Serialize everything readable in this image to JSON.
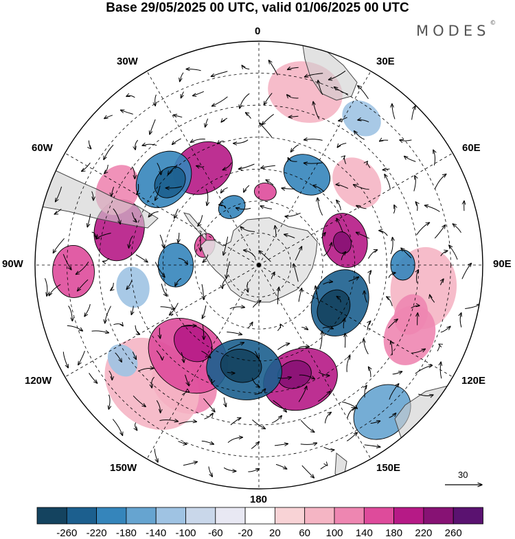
{
  "title": "Base 29/05/2025 00 UTC, valid 01/06/2025 00 UTC",
  "brand": {
    "name": "MODES",
    "mark": "©"
  },
  "longitude_labels": {
    "lon_0": "0",
    "lon_30e": "30E",
    "lon_60e": "60E",
    "lon_90e": "90E",
    "lon_120e": "120E",
    "lon_150e": "150E",
    "lon_180": "180",
    "lon_150w": "150W",
    "lon_120w": "120W",
    "lon_90w": "90W",
    "lon_60w": "60W",
    "lon_30w": "30W"
  },
  "reference_vector": {
    "value": "30"
  },
  "colorbar": {
    "labels": [
      "-260",
      "-220",
      "-180",
      "-140",
      "-100",
      "-60",
      "-20",
      "20",
      "60",
      "100",
      "140",
      "180",
      "220",
      "260"
    ],
    "colors": [
      "#14435f",
      "#1c5f8e",
      "#3585bb",
      "#66a4d0",
      "#9fc3e3",
      "#c9d7ea",
      "#e8e8f3",
      "#ffffff",
      "#f8d3d6",
      "#f5b5c4",
      "#ee86b1",
      "#de4b9b",
      "#b61a86",
      "#871274",
      "#5a1270"
    ]
  },
  "colors": {
    "land": "#e2e2e2",
    "text": "#000000"
  },
  "anomaly_features": [
    {
      "id": "a1",
      "sign": "positive",
      "level": 3,
      "lon": 98,
      "lat": -38,
      "r": 60
    },
    {
      "id": "a2",
      "sign": "positive",
      "level": 4,
      "lon": 108,
      "lat": -40,
      "r": 30
    },
    {
      "id": "a3",
      "sign": "positive",
      "level": 2,
      "lon": 15,
      "lat": -34,
      "r": 55
    },
    {
      "id": "a4",
      "sign": "positive",
      "level": 4,
      "lon": -148,
      "lat": -46,
      "r": 50
    },
    {
      "id": "a5",
      "sign": "positive",
      "level": 2,
      "lon": -138,
      "lat": -40,
      "r": 75
    },
    {
      "id": "a6",
      "sign": "positive",
      "level": 8,
      "lon": 160,
      "lat": -52,
      "r": 55
    },
    {
      "id": "a7",
      "sign": "positive",
      "level": 10,
      "lon": 162,
      "lat": -54,
      "r": 25
    },
    {
      "id": "a8",
      "sign": "positive",
      "level": 9,
      "lon": 74,
      "lat": -62,
      "r": 40
    },
    {
      "id": "a9",
      "sign": "positive",
      "level": 11,
      "lon": 75,
      "lat": -63,
      "r": 16
    },
    {
      "id": "a10",
      "sign": "positive",
      "level": 7,
      "lon": -142,
      "lat": -54,
      "r": 62
    },
    {
      "id": "a11",
      "sign": "positive",
      "level": 9,
      "lon": -140,
      "lat": -58,
      "r": 30
    },
    {
      "id": "a12",
      "sign": "positive",
      "level": 8,
      "lon": -30,
      "lat": -55,
      "r": 45
    },
    {
      "id": "a13",
      "sign": "positive",
      "level": 8,
      "lon": -76,
      "lat": -45,
      "r": 45
    },
    {
      "id": "a14",
      "sign": "positive",
      "level": 5,
      "lon": -62,
      "lat": -40,
      "r": 38
    },
    {
      "id": "a15",
      "sign": "positive",
      "level": 5,
      "lon": 115,
      "lat": -38,
      "r": 45
    },
    {
      "id": "a16",
      "sign": "positive",
      "level": 3,
      "lon": 50,
      "lat": -50,
      "r": 40
    },
    {
      "id": "a17",
      "sign": "positive",
      "level": 7,
      "lon": -92,
      "lat": -32,
      "r": 38
    },
    {
      "id": "a18",
      "sign": "positive",
      "level": 7,
      "lon": -70,
      "lat": -72,
      "r": 18
    },
    {
      "id": "a19",
      "sign": "positive",
      "level": 7,
      "lon": 5,
      "lat": -67,
      "r": 16
    },
    {
      "id": "n1",
      "sign": "negative",
      "level": 4,
      "lon": -125,
      "lat": -38,
      "r": 25
    },
    {
      "id": "n2",
      "sign": "negative",
      "level": 5,
      "lon": -100,
      "lat": -50,
      "r": 30
    },
    {
      "id": "n3",
      "sign": "negative",
      "level": 9,
      "lon": -48,
      "lat": -50,
      "r": 45
    },
    {
      "id": "n4",
      "sign": "negative",
      "level": 10,
      "lon": -47,
      "lat": -52,
      "r": 25
    },
    {
      "id": "n5",
      "sign": "negative",
      "level": 8,
      "lon": 28,
      "lat": -58,
      "r": 35
    },
    {
      "id": "n6",
      "sign": "negative",
      "level": 10,
      "lon": 115,
      "lat": -62,
      "r": 50
    },
    {
      "id": "n7",
      "sign": "negative",
      "level": 12,
      "lon": 120,
      "lat": -63,
      "r": 28
    },
    {
      "id": "n8",
      "sign": "negative",
      "level": 10,
      "lon": -172,
      "lat": -57,
      "r": 55
    },
    {
      "id": "n9",
      "sign": "negative",
      "level": 13,
      "lon": -170,
      "lat": -58,
      "r": 30
    },
    {
      "id": "n10",
      "sign": "negative",
      "level": 8,
      "lon": 90,
      "lat": -45,
      "r": 22
    },
    {
      "id": "n11",
      "sign": "negative",
      "level": 8,
      "lon": -90,
      "lat": -64,
      "r": 32
    },
    {
      "id": "n12",
      "sign": "negative",
      "level": 8,
      "lon": -25,
      "lat": -70,
      "r": 20
    },
    {
      "id": "n13",
      "sign": "negative",
      "level": 6,
      "lon": 140,
      "lat": -30,
      "r": 45
    },
    {
      "id": "n14",
      "sign": "negative",
      "level": 5,
      "lon": 35,
      "lat": -34,
      "r": 30
    }
  ]
}
